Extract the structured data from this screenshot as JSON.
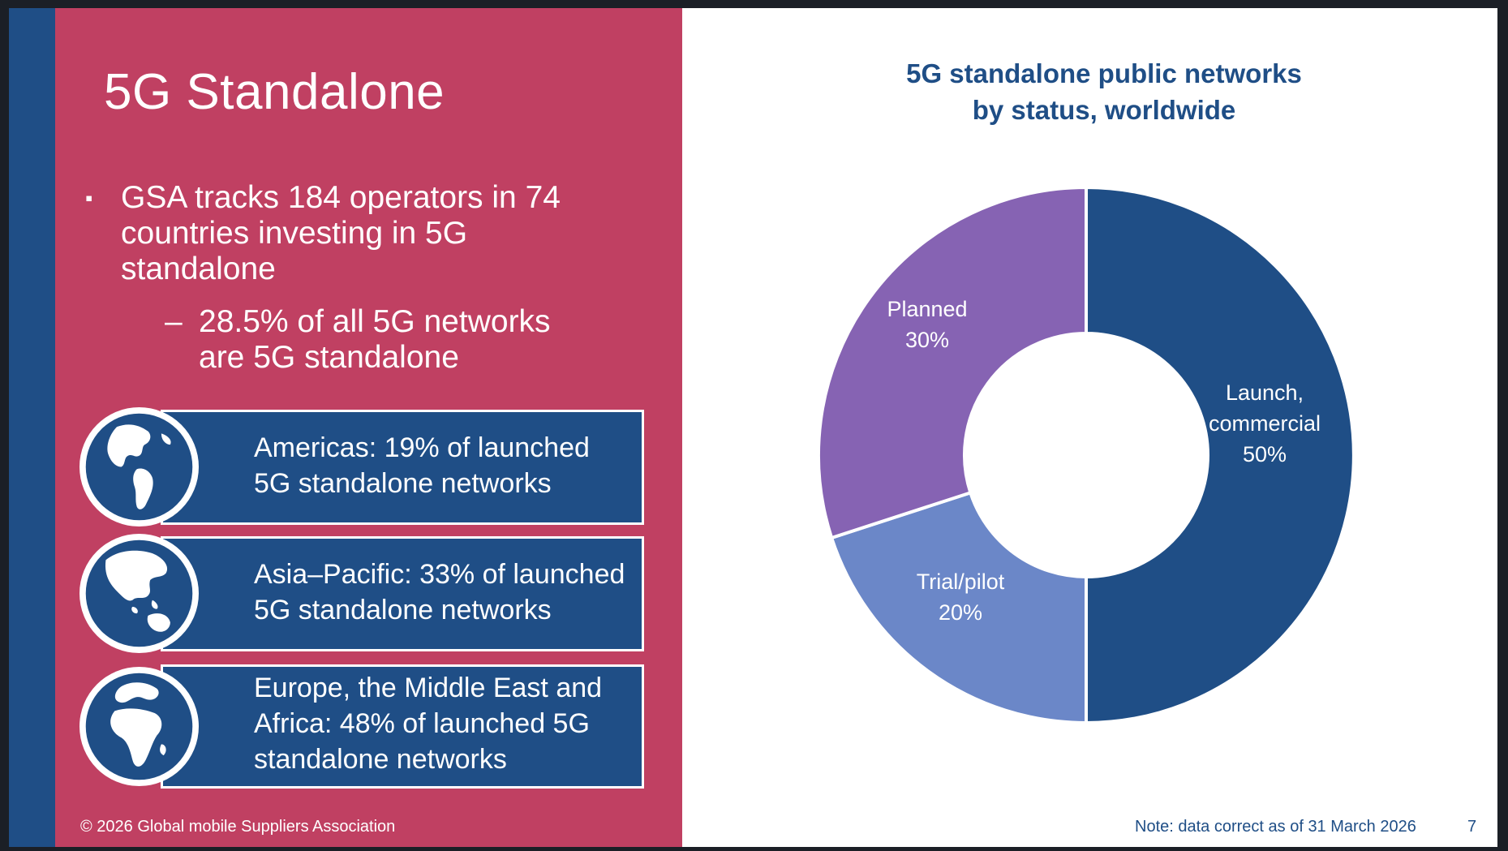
{
  "slide": {
    "title": "5G Standalone",
    "bullet_main": "GSA tracks 184 operators in 74 countries investing in 5G standalone",
    "bullet_sub": "28.5% of all 5G networks are 5G standalone",
    "bullet_marker": "▪",
    "sub_marker": "–"
  },
  "regions": [
    {
      "text": "Americas: 19% of launched 5G standalone networks",
      "icon": "globe-americas-icon"
    },
    {
      "text": "Asia–Pacific: 33% of launched 5G standalone networks",
      "icon": "globe-asia-pacific-icon"
    },
    {
      "text": "Europe, the Middle East and Africa: 48% of launched 5G standalone networks",
      "icon": "globe-emea-icon"
    }
  ],
  "footer": {
    "copyright": "© 2026 Global mobile Suppliers Association",
    "note": "Note: data correct as of 31 March 2026",
    "page": "7"
  },
  "colors": {
    "panel": "#c04062",
    "strip": "#1f4e86",
    "launch": "#1f4e86",
    "trial": "#6b87c8",
    "planned": "#8663b3"
  },
  "chart_data": {
    "type": "pie",
    "donut": true,
    "title": "5G standalone public networks by status, worldwide",
    "title_lines": [
      "5G standalone public networks",
      "by status, worldwide"
    ],
    "slices": [
      {
        "label": "Launch, commercial",
        "label_lines": [
          "Launch,",
          "commercial"
        ],
        "value": 50,
        "display": "50%",
        "color": "#1f4e86"
      },
      {
        "label": "Trial/pilot",
        "label_lines": [
          "Trial/pilot"
        ],
        "value": 20,
        "display": "20%",
        "color": "#6b87c8"
      },
      {
        "label": "Planned",
        "label_lines": [
          "Planned"
        ],
        "value": 30,
        "display": "30%",
        "color": "#8663b3"
      }
    ]
  }
}
